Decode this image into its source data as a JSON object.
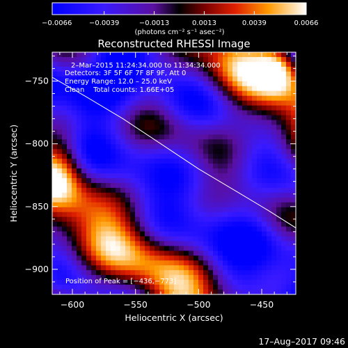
{
  "chart_data": {
    "type": "heatmap",
    "title": "Reconstructed RHESSI Image",
    "xlabel": "Heliocentric X (arcsec)",
    "ylabel": "Heliocentric Y (arcsec)",
    "xlim": [
      -616,
      -423
    ],
    "ylim": [
      -920,
      -727
    ],
    "x_ticks": [
      -600,
      -550,
      -500,
      -450
    ],
    "x_tick_labels": [
      "−600",
      "−550",
      "−500",
      "−450"
    ],
    "y_ticks": [
      -750,
      -800,
      -850,
      -900
    ],
    "y_tick_labels": [
      "−750",
      "−800",
      "−850",
      "−900"
    ],
    "colorbar": {
      "range": [
        -0.0066,
        0.0066
      ],
      "ticks": [
        -0.0066,
        -0.0039,
        -0.0013,
        0.0013,
        0.0039,
        0.0066
      ],
      "tick_labels": [
        "−0.0066",
        "−0.0039",
        "−0.0013",
        "0.0013",
        "0.0039",
        "0.0066"
      ],
      "label": "(photons cm⁻² s⁻¹ asec⁻²)"
    },
    "annotations": {
      "time_range": "2–Mar–2015 11:24:34.000 to 11:34:34.000",
      "detectors": "Detectors: 3F 5F 6F 7F 8F 9F, Att 0",
      "energy_range": "Energy Range: 12.0 – 25.0 keV",
      "algorithm": "Clean    Total counts: 1.66E+05",
      "peak": "Position of Peak = [−436,−773]"
    },
    "limb_curve": {
      "x": [
        -616,
        -590,
        -560,
        -530,
        -500,
        -470,
        -445,
        -423
      ],
      "y": [
        -747,
        -762,
        -780,
        -800,
        -820,
        -838,
        -853,
        -867
      ]
    },
    "grid": false,
    "footer_date": "17–Aug–2017 09:46"
  }
}
